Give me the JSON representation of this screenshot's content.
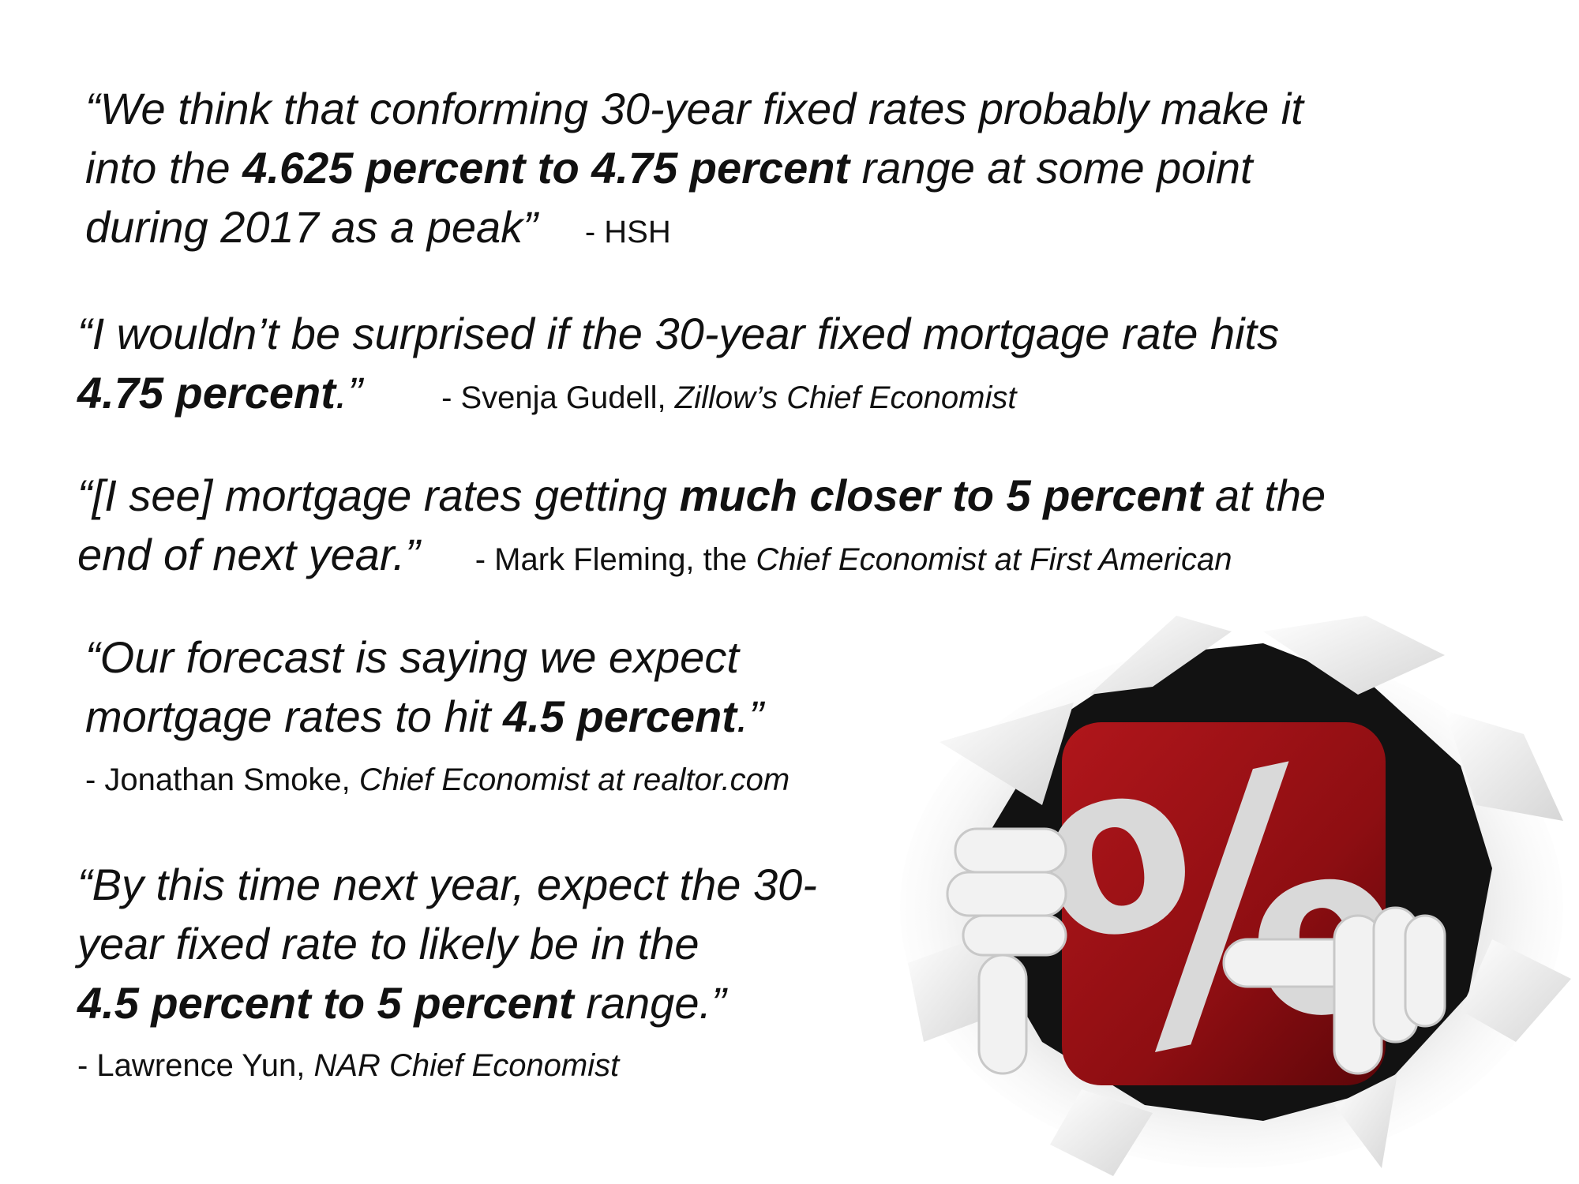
{
  "quotes": [
    {
      "line1": "“We think that conforming 30-year fixed rates probably make it",
      "line2_pre": "into the ",
      "line2_bold": "4.625 percent to 4.75 percent",
      "line2_post": " range at some point",
      "line3": "during 2017 as a peak”",
      "attr_source": "- HSH"
    },
    {
      "line1": "“I wouldn’t be surprised if the 30-year fixed mortgage rate hits",
      "bold": "4.75 percent",
      "end": ".”",
      "attr_name": "- Svenja Gudell, ",
      "attr_title": "Zillow’s Chief Economist"
    },
    {
      "pre": "“[I see] mortgage rates getting ",
      "bold": "much closer to 5 percent",
      "post": " at the",
      "line2": "end of next year.”",
      "attr_name": "- Mark Fleming, the ",
      "attr_title": "Chief Economist at First American"
    },
    {
      "line1": "“Our forecast is saying we expect",
      "line2_pre": "mortgage rates to hit ",
      "bold": "4.5 percent",
      "end": ".”",
      "attr_name": "- Jonathan Smoke, ",
      "attr_title": "Chief Economist at realtor.com"
    },
    {
      "line1": "“By this time next year, expect the 30-",
      "line2": "year fixed rate to likely be in the",
      "bold": "4.5 percent to 5 percent",
      "post": " range.”",
      "attr_name": "- Lawrence Yun, ",
      "attr_title": "NAR Chief Economist"
    }
  ],
  "illustration": {
    "icon": "percent-icon",
    "symbol": "%",
    "colors": {
      "tile": "#8e0e12",
      "hole": "#111111",
      "figure": "#f2f2f2"
    }
  }
}
